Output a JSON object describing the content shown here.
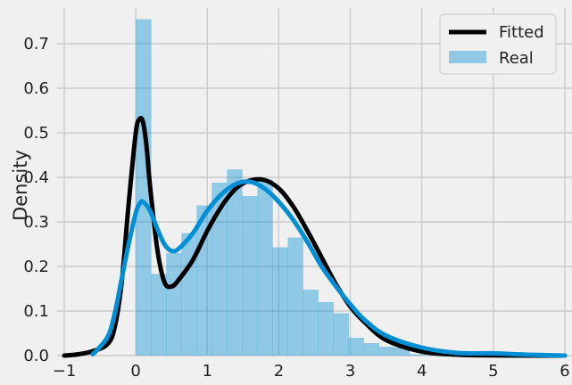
{
  "chart_data": {
    "type": "bar",
    "title": "",
    "xlabel": "",
    "ylabel": "Density",
    "xlim": [
      -1.1,
      6.1
    ],
    "ylim": [
      0,
      0.78
    ],
    "xticks": [
      -1,
      0,
      1,
      2,
      3,
      4,
      5,
      6
    ],
    "xtick_labels": [
      "−1",
      "0",
      "1",
      "2",
      "3",
      "4",
      "5",
      "6"
    ],
    "yticks": [
      0.0,
      0.1,
      0.2,
      0.3,
      0.4,
      0.5,
      0.6,
      0.7
    ],
    "ytick_labels": [
      "0.0",
      "0.1",
      "0.2",
      "0.3",
      "0.4",
      "0.5",
      "0.6",
      "0.7"
    ],
    "grid": true,
    "legend_position": "top-right",
    "histogram": {
      "name": "Real",
      "color": "#008fd5",
      "bin_edges": [
        0.0,
        0.2125,
        0.425,
        0.6375,
        0.85,
        1.0625,
        1.275,
        1.4875,
        1.7,
        1.9125,
        2.125,
        2.3375,
        2.55,
        2.7625,
        2.975,
        3.1875,
        3.4,
        3.6125,
        3.825,
        4.0375,
        4.25
      ],
      "densities": [
        0.755,
        0.183,
        0.23,
        0.275,
        0.337,
        0.388,
        0.418,
        0.358,
        0.395,
        0.243,
        0.265,
        0.148,
        0.12,
        0.095,
        0.04,
        0.028,
        0.02,
        0.018,
        0.003,
        0.001
      ]
    },
    "series": [
      {
        "name": "Fitted",
        "color": "#000000",
        "x": [
          -1.0,
          -0.8,
          -0.6,
          -0.4,
          -0.3,
          -0.2,
          -0.1,
          0.0,
          0.05,
          0.1,
          0.15,
          0.2,
          0.3,
          0.4,
          0.5,
          0.6,
          0.8,
          1.0,
          1.2,
          1.4,
          1.6,
          1.8,
          2.0,
          2.2,
          2.4,
          2.6,
          2.8,
          3.0,
          3.2,
          3.5,
          4.0,
          4.5,
          5.0,
          5.5,
          6.0
        ],
        "y": [
          0.0,
          0.003,
          0.01,
          0.025,
          0.06,
          0.16,
          0.34,
          0.5,
          0.53,
          0.525,
          0.47,
          0.38,
          0.24,
          0.165,
          0.155,
          0.17,
          0.215,
          0.28,
          0.335,
          0.375,
          0.393,
          0.394,
          0.375,
          0.335,
          0.28,
          0.22,
          0.16,
          0.11,
          0.075,
          0.035,
          0.009,
          0.002,
          0.0005,
          0.0,
          0.0
        ]
      },
      {
        "name": "Real",
        "color": "#008fd5",
        "x": [
          -0.6,
          -0.4,
          -0.3,
          -0.2,
          -0.1,
          0.0,
          0.05,
          0.1,
          0.2,
          0.3,
          0.4,
          0.5,
          0.6,
          0.8,
          1.0,
          1.2,
          1.4,
          1.6,
          1.8,
          2.0,
          2.2,
          2.4,
          2.6,
          2.8,
          3.0,
          3.2,
          3.5,
          4.0,
          4.5,
          5.0,
          5.5,
          6.0
        ],
        "y": [
          0.003,
          0.04,
          0.09,
          0.17,
          0.25,
          0.32,
          0.34,
          0.345,
          0.325,
          0.285,
          0.25,
          0.235,
          0.24,
          0.275,
          0.325,
          0.362,
          0.385,
          0.39,
          0.375,
          0.345,
          0.305,
          0.255,
          0.2,
          0.155,
          0.115,
          0.08,
          0.045,
          0.018,
          0.006,
          0.005,
          0.002,
          0.0
        ]
      }
    ],
    "legend": [
      {
        "label": "Fitted",
        "kind": "line",
        "color": "#000000"
      },
      {
        "label": "Real",
        "kind": "patch",
        "color": "#008fd5"
      }
    ]
  }
}
